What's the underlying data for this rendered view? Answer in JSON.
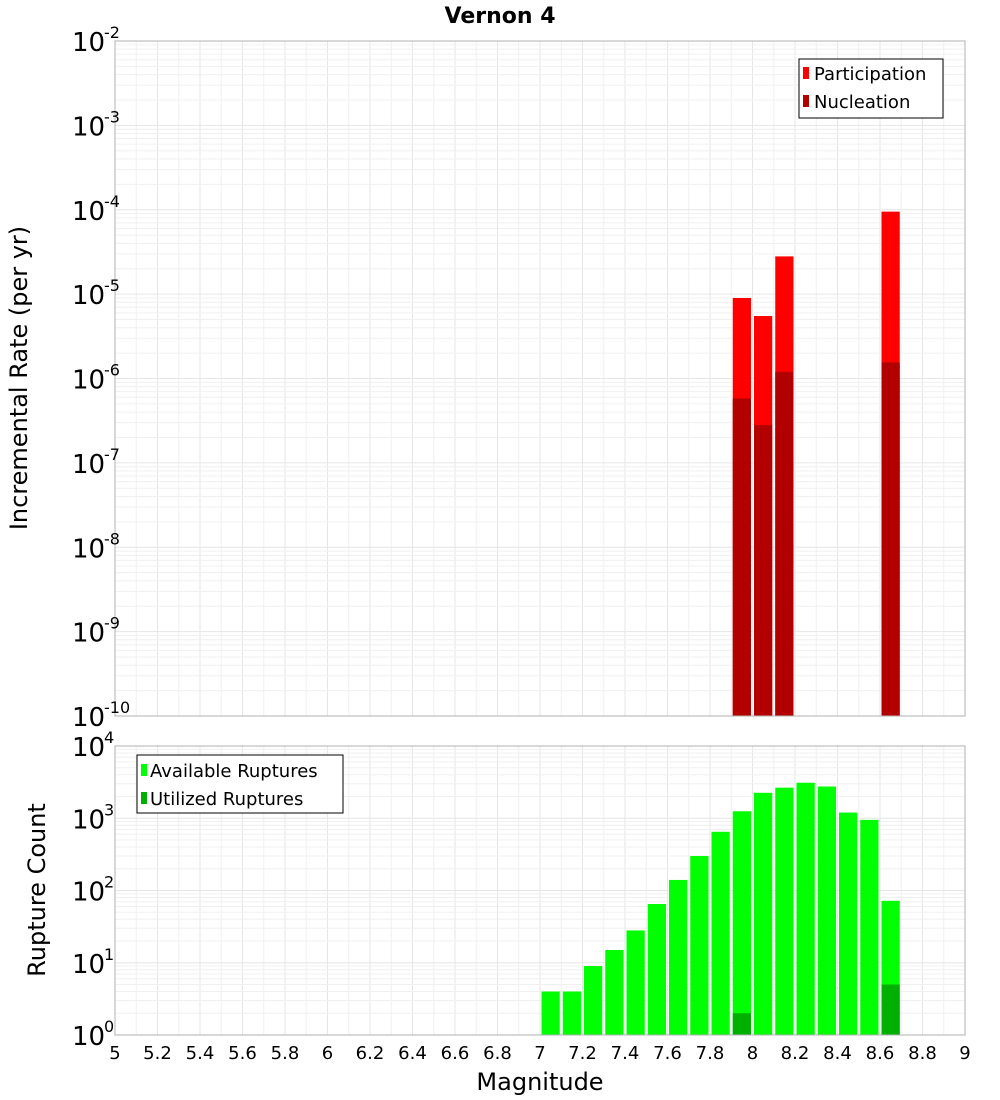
{
  "chart_data": [
    {
      "type": "bar",
      "title": "Vernon 4",
      "xlabel": "Magnitude",
      "ylabel": "Incremental Rate (per yr)",
      "yscale": "log",
      "xlim": [
        5,
        9
      ],
      "ylim_exponents": [
        -10,
        -2
      ],
      "bin_width": 0.1,
      "legend_position": "top-right",
      "series": [
        {
          "name": "Participation",
          "color": "#ff0000",
          "x": [
            7.95,
            8.05,
            8.15,
            8.65
          ],
          "values": [
            9e-06,
            5.5e-06,
            2.8e-05,
            9.5e-05
          ]
        },
        {
          "name": "Nucleation",
          "color": "#b20000",
          "x": [
            7.95,
            8.05,
            8.15,
            8.65
          ],
          "values": [
            5.8e-07,
            2.8e-07,
            1.2e-06,
            1.55e-06
          ]
        }
      ]
    },
    {
      "type": "bar",
      "xlabel": "Magnitude",
      "ylabel": "Rupture Count",
      "yscale": "log",
      "xlim": [
        5,
        9
      ],
      "ylim_exponents": [
        0,
        4
      ],
      "bin_width": 0.1,
      "legend_position": "top-left",
      "series": [
        {
          "name": "Available Ruptures",
          "color": "#00ff00",
          "x": [
            6.85,
            7.05,
            7.15,
            7.25,
            7.35,
            7.45,
            7.55,
            7.65,
            7.75,
            7.85,
            7.95,
            8.05,
            8.15,
            8.25,
            8.35,
            8.45,
            8.55,
            8.65
          ],
          "values": [
            1,
            4,
            4,
            9,
            15,
            28,
            65,
            140,
            300,
            650,
            1250,
            2250,
            2650,
            3100,
            2750,
            1200,
            950,
            72
          ]
        },
        {
          "name": "Utilized Ruptures",
          "color": "#00b000",
          "x": [
            7.95,
            8.05,
            8.15,
            8.65
          ],
          "values": [
            2,
            1,
            1,
            5
          ]
        }
      ]
    }
  ],
  "x_ticks": [
    "5",
    "5.2",
    "5.4",
    "5.6",
    "5.8",
    "6",
    "6.2",
    "6.4",
    "6.6",
    "6.8",
    "7",
    "7.2",
    "7.4",
    "7.6",
    "7.8",
    "8",
    "8.2",
    "8.4",
    "8.6",
    "8.8",
    "9"
  ],
  "top_y_ticks": {
    "base": "10",
    "exponents": [
      "-10",
      "-9",
      "-8",
      "-7",
      "-6",
      "-5",
      "-4",
      "-3",
      "-2"
    ]
  },
  "bottom_y_ticks": {
    "base": "10",
    "exponents": [
      "0",
      "1",
      "2",
      "3",
      "4"
    ]
  }
}
